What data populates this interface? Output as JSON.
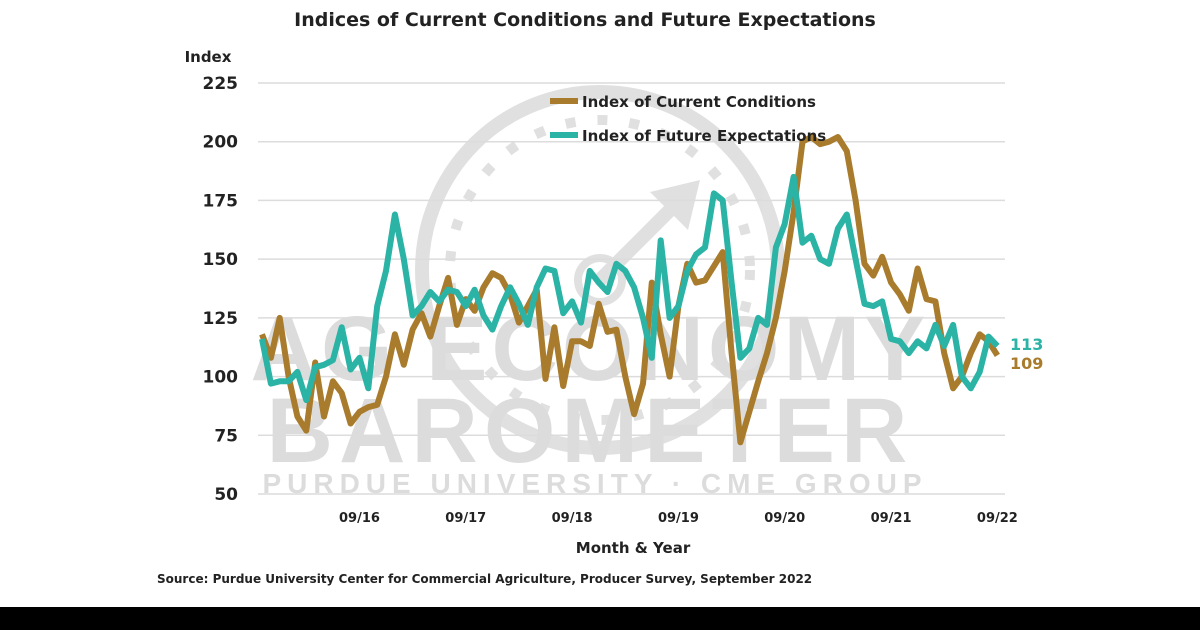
{
  "chart_data": {
    "type": "line",
    "title": "Indices of Current Conditions and Future Expectations",
    "ylabel": "Index",
    "xlabel": "Month & Year",
    "source": "Source: Purdue University Center for Commercial Agriculture, Producer Survey, September 2022",
    "ylim": [
      50,
      225
    ],
    "yticks": [
      "225",
      "200",
      "175",
      "150",
      "125",
      "100",
      "75",
      "50"
    ],
    "x_start": "10/15",
    "x_end": "09/22",
    "xticks": [
      "09/16",
      "09/17",
      "09/18",
      "09/19",
      "09/20",
      "09/21",
      "09/22"
    ],
    "grid": true,
    "legend_placement": "top-center",
    "series": [
      {
        "name": "Index of Current Conditions",
        "color": "#a97b2c",
        "end_label": "109",
        "values": [
          118,
          108,
          125,
          100,
          83,
          77,
          106,
          83,
          98,
          93,
          80,
          85,
          87,
          88,
          100,
          118,
          105,
          120,
          127,
          117,
          130,
          142,
          122,
          133,
          128,
          138,
          144,
          142,
          135,
          123,
          130,
          137,
          99,
          121,
          96,
          115,
          115,
          113,
          131,
          119,
          120,
          100,
          84,
          97,
          140,
          118,
          100,
          130,
          148,
          140,
          141,
          147,
          153,
          110,
          72,
          85,
          98,
          110,
          125,
          145,
          170,
          200,
          202,
          199,
          200,
          202,
          196,
          175,
          148,
          143,
          151,
          140,
          135,
          128,
          146,
          133,
          132,
          110,
          95,
          100,
          110,
          118,
          115,
          109
        ]
      },
      {
        "name": "Index of Future Expectations",
        "color": "#2bb3a6",
        "end_label": "113",
        "values": [
          116,
          97,
          98,
          98,
          102,
          90,
          104,
          105,
          107,
          121,
          103,
          108,
          95,
          130,
          145,
          169,
          150,
          126,
          130,
          136,
          132,
          137,
          136,
          130,
          137,
          126,
          120,
          130,
          138,
          131,
          122,
          138,
          146,
          145,
          127,
          132,
          123,
          145,
          140,
          136,
          148,
          145,
          138,
          125,
          108,
          158,
          125,
          130,
          145,
          152,
          155,
          178,
          175,
          140,
          108,
          112,
          125,
          122,
          155,
          165,
          185,
          157,
          160,
          150,
          148,
          163,
          169,
          150,
          131,
          130,
          132,
          116,
          115,
          110,
          115,
          112,
          122,
          113,
          122,
          100,
          95,
          102,
          117,
          113
        ]
      }
    ]
  },
  "watermark": {
    "line1": "AG ECONOMY",
    "line2": "BAROMETER",
    "line3": "PURDUE UNIVERSITY  ·  CME GROUP"
  }
}
